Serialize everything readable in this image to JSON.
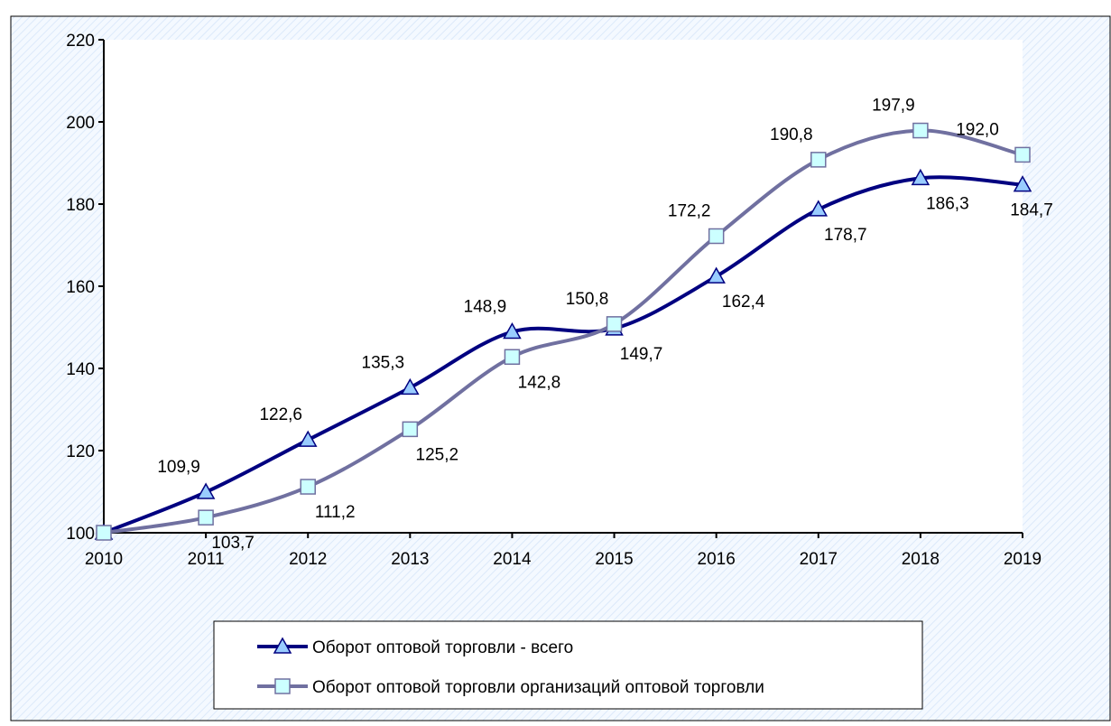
{
  "chart_data": {
    "type": "line",
    "categories": [
      "2010",
      "2011",
      "2012",
      "2013",
      "2014",
      "2015",
      "2016",
      "2017",
      "2018",
      "2019"
    ],
    "series": [
      {
        "name": "Оборот оптовой торговли - всего",
        "color": "#000080",
        "marker": "triangle",
        "marker_color": "#99ccff",
        "values": [
          100,
          109.9,
          122.6,
          135.3,
          148.9,
          149.7,
          162.4,
          178.7,
          186.3,
          184.7
        ],
        "value_labels": [
          null,
          "109,9",
          "122,6",
          "135,3",
          "148,9",
          "149,7",
          "162,4",
          "178,7",
          "186,3",
          "184,7"
        ]
      },
      {
        "name": "Оборот оптовой торговли организаций оптовой торговли",
        "color": "#7070a0",
        "marker": "square",
        "marker_color": "#ccffff",
        "values": [
          100,
          103.7,
          111.2,
          125.2,
          142.8,
          150.8,
          172.2,
          190.8,
          197.9,
          192.0
        ],
        "value_labels": [
          null,
          "103,7",
          "111,2",
          "125,2",
          "142,8",
          "150,8",
          "172,2",
          "190,8",
          "197,9",
          "192,0"
        ]
      }
    ],
    "ylim": [
      100,
      220
    ],
    "yticks": [
      100,
      120,
      140,
      160,
      180,
      200,
      220
    ],
    "smooth": true
  }
}
